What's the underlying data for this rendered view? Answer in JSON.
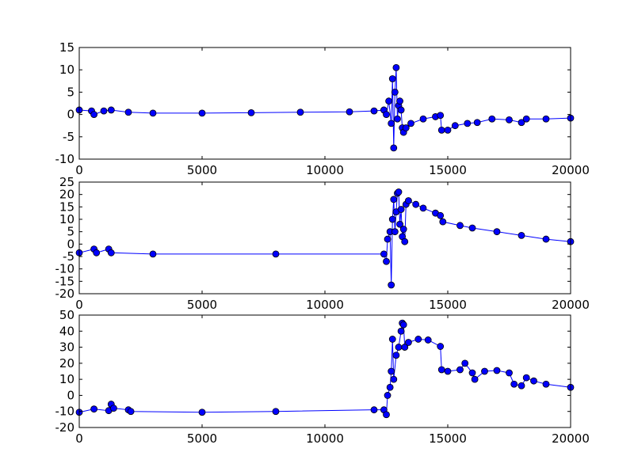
{
  "chart_data": [
    {
      "type": "line",
      "marker": "o",
      "color": "#0000ff",
      "x": [
        0,
        500,
        600,
        1000,
        1300,
        2000,
        3000,
        5000,
        7000,
        9000,
        11000,
        12000,
        12400,
        12500,
        12600,
        12700,
        12750,
        12800,
        12850,
        12900,
        12950,
        13000,
        13050,
        13100,
        13150,
        13200,
        13300,
        13500,
        14000,
        14500,
        14700,
        14750,
        15000,
        15300,
        15800,
        16200,
        16800,
        17500,
        18000,
        18200,
        19000,
        20000
      ],
      "values": [
        1,
        0.8,
        0,
        0.8,
        1,
        0.5,
        0.3,
        0.3,
        0.4,
        0.5,
        0.6,
        0.8,
        1,
        0,
        3,
        -2,
        8,
        -7.5,
        5,
        10.5,
        -1,
        2,
        3,
        1,
        -3,
        -4,
        -3,
        -2,
        -1,
        -0.5,
        -0.2,
        -3.5,
        -3.5,
        -2.5,
        -2,
        -1.8,
        -1,
        -1.2,
        -1.8,
        -1,
        -1,
        -0.8
      ],
      "xlim": [
        0,
        20000
      ],
      "xticks": [
        0,
        5000,
        10000,
        15000,
        20000
      ],
      "ylim": [
        -10,
        15
      ],
      "yticks": [
        -10,
        -5,
        0,
        5,
        10,
        15
      ]
    },
    {
      "type": "line",
      "marker": "o",
      "color": "#0000ff",
      "x": [
        0,
        600,
        700,
        1200,
        1300,
        3000,
        8000,
        12400,
        12500,
        12550,
        12650,
        12700,
        12750,
        12800,
        12850,
        12900,
        12950,
        13000,
        13050,
        13100,
        13150,
        13200,
        13250,
        13300,
        13400,
        13700,
        14000,
        14500,
        14700,
        14800,
        15500,
        16000,
        17000,
        18000,
        19000,
        20000
      ],
      "values": [
        -3.5,
        -2,
        -3.5,
        -2,
        -3.5,
        -4,
        -4,
        -4,
        -7,
        2,
        5,
        -16.5,
        10,
        18,
        5,
        13,
        20.5,
        21,
        8,
        14,
        3,
        6,
        1,
        16,
        17.5,
        16,
        14.5,
        12.5,
        11.5,
        9,
        7.5,
        6.5,
        5,
        3.5,
        2,
        1
      ],
      "xlim": [
        0,
        20000
      ],
      "xticks": [
        0,
        5000,
        10000,
        15000,
        20000
      ],
      "ylim": [
        -20,
        25
      ],
      "yticks": [
        -20,
        -15,
        -10,
        -5,
        0,
        5,
        10,
        15,
        20,
        25
      ]
    },
    {
      "type": "line",
      "marker": "o",
      "color": "#0000ff",
      "x": [
        0,
        600,
        1200,
        1300,
        1400,
        2000,
        2100,
        5000,
        8000,
        12000,
        12400,
        12500,
        12550,
        12650,
        12700,
        12750,
        12800,
        12900,
        13000,
        13100,
        13150,
        13200,
        13250,
        13400,
        13800,
        14200,
        14700,
        14750,
        15000,
        15500,
        15700,
        16000,
        16100,
        16500,
        17000,
        17500,
        17700,
        18000,
        18200,
        18500,
        19000,
        20000
      ],
      "values": [
        -10.5,
        -8.5,
        -9.5,
        -5.5,
        -8,
        -9,
        -10,
        -10.5,
        -10,
        -9,
        -9,
        -12,
        0,
        5,
        15,
        35,
        10,
        25,
        30,
        40,
        45,
        44,
        30,
        33,
        35,
        34.5,
        30.5,
        16,
        15,
        16,
        20,
        14,
        10,
        15,
        15.5,
        14,
        7,
        6,
        11,
        9,
        7,
        5
      ],
      "xlim": [
        0,
        20000
      ],
      "xticks": [
        0,
        5000,
        10000,
        15000,
        20000
      ],
      "ylim": [
        -20,
        50
      ],
      "yticks": [
        -20,
        -10,
        0,
        10,
        20,
        30,
        40,
        50
      ]
    }
  ]
}
